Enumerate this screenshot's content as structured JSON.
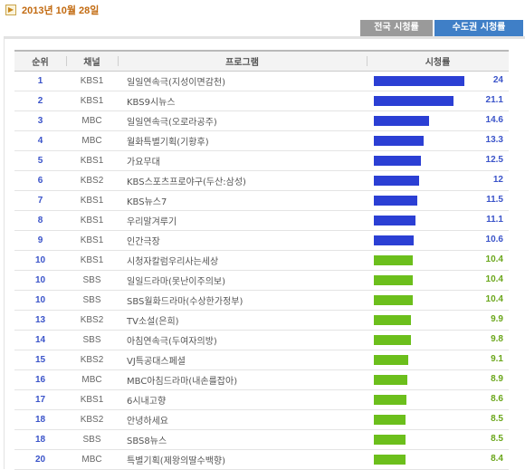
{
  "header": {
    "date": "2013년 10월 28일",
    "date_icon": "arrow-right-icon"
  },
  "tabs": [
    {
      "label": "전국 시청률",
      "active": false
    },
    {
      "label": "수도권 시청률",
      "active": true
    }
  ],
  "table": {
    "columns": [
      "순위",
      "채널",
      "프로그램",
      "시청률"
    ],
    "max_rating": 24,
    "colors": {
      "blue": "#2b3fd4",
      "green": "#6cbf1c",
      "rank": "#3a53c9"
    },
    "rows": [
      {
        "rank": "1",
        "channel": "KBS1",
        "program": "일일연속극(지성이면감천)",
        "rating": 24,
        "rating_text": "24",
        "color": "blue"
      },
      {
        "rank": "2",
        "channel": "KBS1",
        "program": "KBS9시뉴스",
        "rating": 21.1,
        "rating_text": "21.1",
        "color": "blue"
      },
      {
        "rank": "3",
        "channel": "MBC",
        "program": "일일연속극(오로라공주)",
        "rating": 14.6,
        "rating_text": "14.6",
        "color": "blue"
      },
      {
        "rank": "4",
        "channel": "MBC",
        "program": "월화특별기획(기황후)",
        "rating": 13.3,
        "rating_text": "13.3",
        "color": "blue"
      },
      {
        "rank": "5",
        "channel": "KBS1",
        "program": "가요무대",
        "rating": 12.5,
        "rating_text": "12.5",
        "color": "blue"
      },
      {
        "rank": "6",
        "channel": "KBS2",
        "program": "KBS스포츠프로야구(두산:삼성)",
        "rating": 12,
        "rating_text": "12",
        "color": "blue"
      },
      {
        "rank": "7",
        "channel": "KBS1",
        "program": "KBS뉴스7",
        "rating": 11.5,
        "rating_text": "11.5",
        "color": "blue"
      },
      {
        "rank": "8",
        "channel": "KBS1",
        "program": "우리말겨루기",
        "rating": 11.1,
        "rating_text": "11.1",
        "color": "blue"
      },
      {
        "rank": "9",
        "channel": "KBS1",
        "program": "인간극장",
        "rating": 10.6,
        "rating_text": "10.6",
        "color": "blue"
      },
      {
        "rank": "10",
        "channel": "KBS1",
        "program": "시청자칼럼우리사는세상",
        "rating": 10.4,
        "rating_text": "10.4",
        "color": "green"
      },
      {
        "rank": "10",
        "channel": "SBS",
        "program": "일일드라마(못난이주의보)",
        "rating": 10.4,
        "rating_text": "10.4",
        "color": "green"
      },
      {
        "rank": "10",
        "channel": "SBS",
        "program": "SBS월화드라마(수상한가정부)",
        "rating": 10.4,
        "rating_text": "10.4",
        "color": "green"
      },
      {
        "rank": "13",
        "channel": "KBS2",
        "program": "TV소설(은희)",
        "rating": 9.9,
        "rating_text": "9.9",
        "color": "green"
      },
      {
        "rank": "14",
        "channel": "SBS",
        "program": "아침연속극(두여자의방)",
        "rating": 9.8,
        "rating_text": "9.8",
        "color": "green"
      },
      {
        "rank": "15",
        "channel": "KBS2",
        "program": "VJ특공대스페셜",
        "rating": 9.1,
        "rating_text": "9.1",
        "color": "green"
      },
      {
        "rank": "16",
        "channel": "MBC",
        "program": "MBC아침드라마(내손를잡아)",
        "rating": 8.9,
        "rating_text": "8.9",
        "color": "green"
      },
      {
        "rank": "17",
        "channel": "KBS1",
        "program": "6시내고향",
        "rating": 8.6,
        "rating_text": "8.6",
        "color": "green"
      },
      {
        "rank": "18",
        "channel": "KBS2",
        "program": "안녕하세요",
        "rating": 8.5,
        "rating_text": "8.5",
        "color": "green"
      },
      {
        "rank": "18",
        "channel": "SBS",
        "program": "SBS8뉴스",
        "rating": 8.5,
        "rating_text": "8.5",
        "color": "green"
      },
      {
        "rank": "20",
        "channel": "MBC",
        "program": "특별기획(제왕의딸수백향)",
        "rating": 8.4,
        "rating_text": "8.4",
        "color": "green"
      }
    ]
  }
}
